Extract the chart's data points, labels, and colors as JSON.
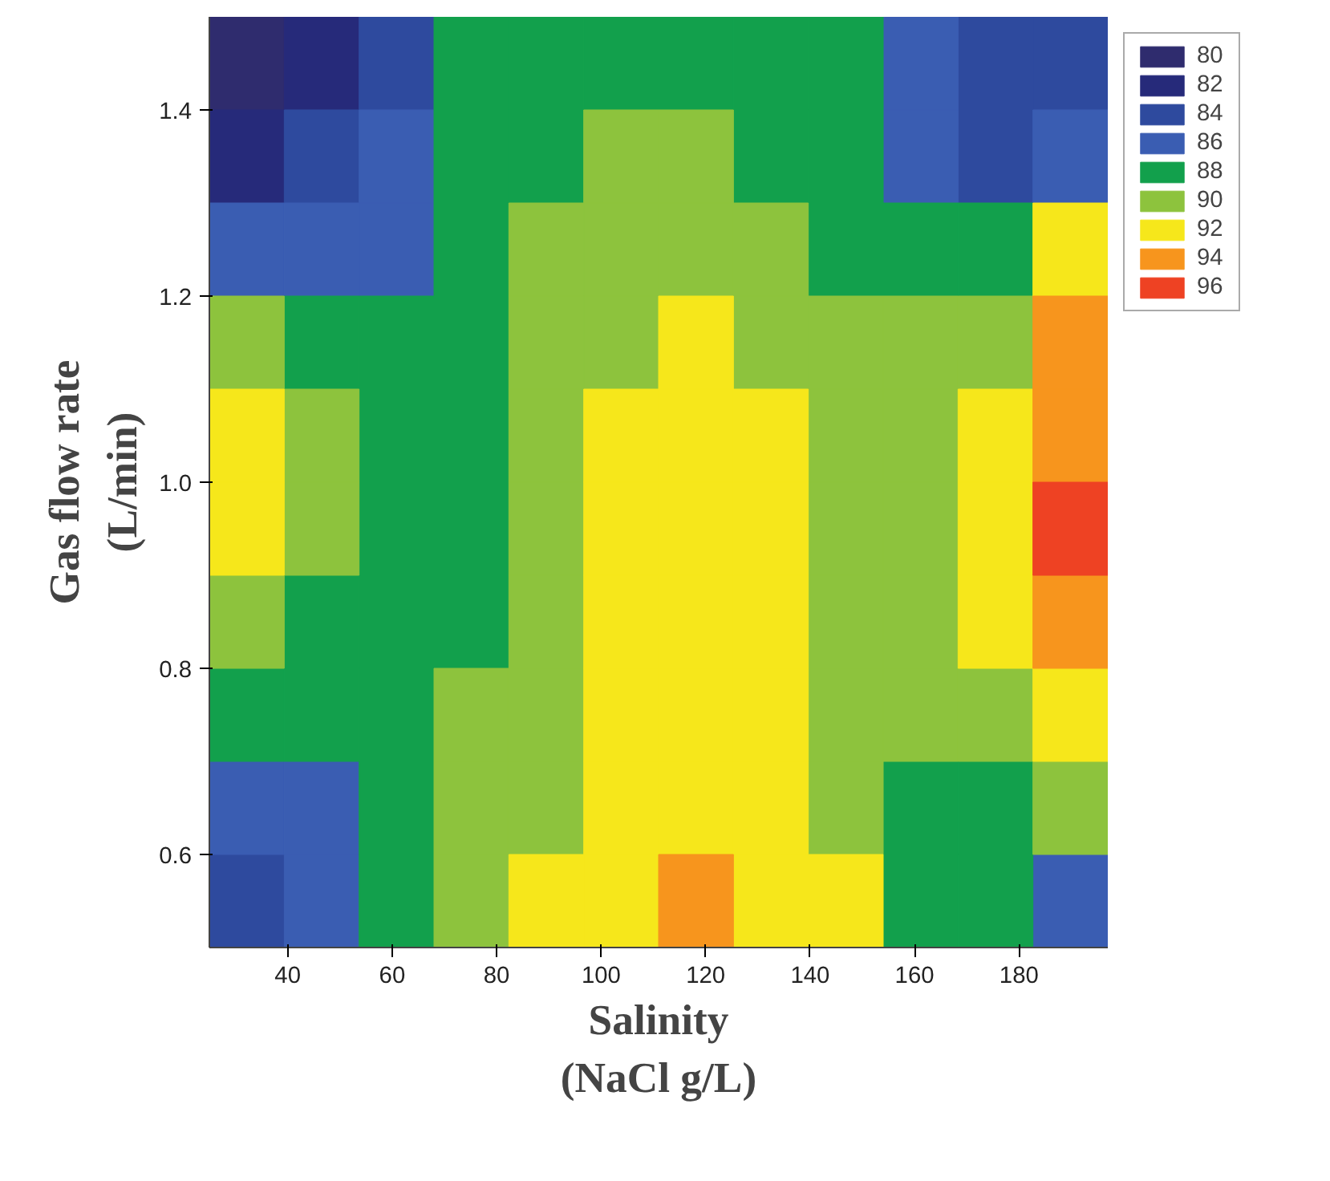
{
  "chart_data": {
    "type": "heatmap",
    "xlabel": "Salinity\n(NaCl g/L)",
    "ylabel": "Gas flow rate\n(L/min)",
    "xlim": [
      25,
      197
    ],
    "ylim": [
      0.5,
      1.5
    ],
    "xticks": [
      40,
      60,
      80,
      100,
      120,
      140,
      160,
      180
    ],
    "yticks": [
      {
        "value": 0.6,
        "label": "0.6"
      },
      {
        "value": 0.8,
        "label": "0.8"
      },
      {
        "value": 1.0,
        "label": "1.0"
      },
      {
        "value": 1.2,
        "label": "1.2"
      },
      {
        "value": 1.4,
        "label": "1.4"
      }
    ],
    "cticks": [
      80,
      82,
      84,
      86,
      88,
      90,
      92,
      94,
      96
    ],
    "colors": [
      "#2f2c6e",
      "#262a7a",
      "#2e4a9e",
      "#3a5db2",
      "#12a04c",
      "#8dc33d",
      "#f6e71b",
      "#f7951d",
      "#ee4223"
    ],
    "cells": [
      [
        81,
        82,
        85,
        88,
        89,
        89,
        89,
        89,
        88,
        86,
        84,
        84
      ],
      [
        83,
        84,
        86,
        88,
        89,
        90,
        90,
        89,
        88,
        86,
        85,
        86
      ],
      [
        87,
        87,
        87,
        88,
        90,
        90,
        91,
        90,
        89,
        88,
        89,
        92
      ],
      [
        90,
        89,
        88,
        89,
        90,
        91,
        92,
        91,
        90,
        90,
        91,
        94
      ],
      [
        92,
        90,
        89,
        89,
        90,
        92,
        92,
        92,
        91,
        91,
        92,
        95
      ],
      [
        92,
        90,
        89,
        89,
        90,
        92,
        93,
        92,
        91,
        91,
        92,
        96
      ],
      [
        90,
        89,
        89,
        89,
        91,
        92,
        93,
        92,
        91,
        91,
        92,
        94
      ],
      [
        88,
        88,
        89,
        90,
        91,
        92,
        93,
        92,
        91,
        90,
        91,
        92
      ],
      [
        86,
        87,
        88,
        90,
        91,
        92,
        93,
        92,
        91,
        89,
        89,
        90
      ],
      [
        85,
        86,
        88,
        91,
        92,
        93,
        94,
        93,
        92,
        89,
        88,
        87
      ]
    ]
  }
}
